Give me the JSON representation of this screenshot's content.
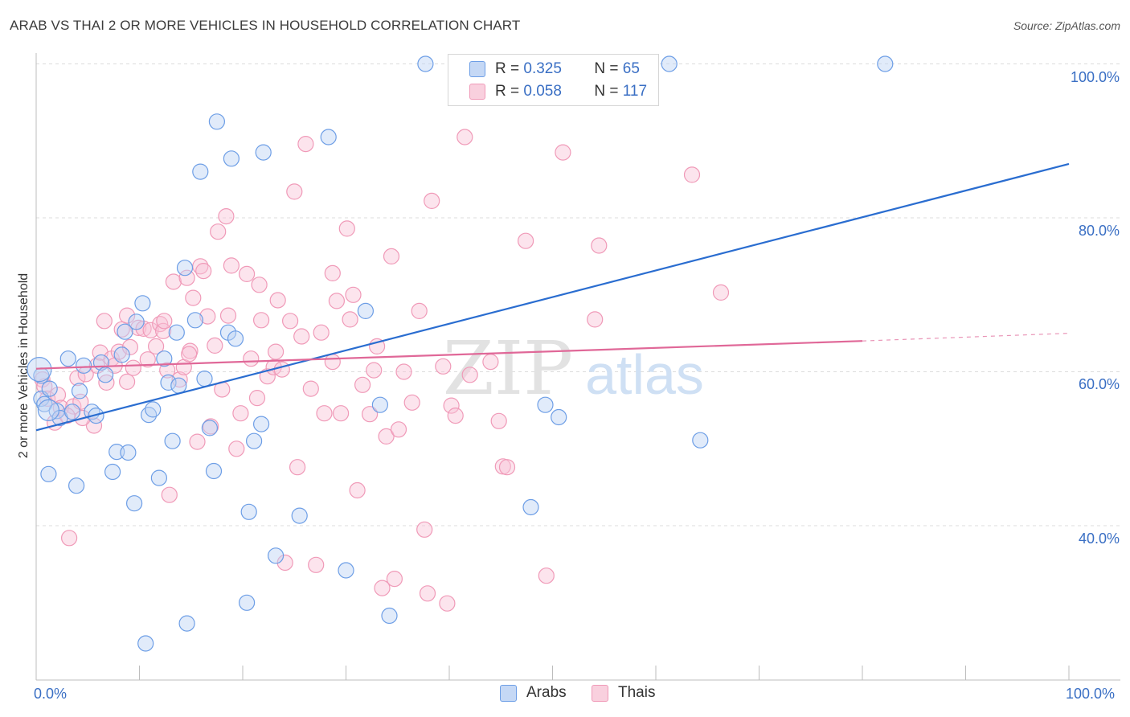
{
  "title": "ARAB VS THAI 2 OR MORE VEHICLES IN HOUSEHOLD CORRELATION CHART",
  "source": "Source: ZipAtlas.com",
  "watermark": {
    "zip": "ZIP",
    "atlas": "atlas"
  },
  "legend_top": {
    "arabs": {
      "r_label": "R = ",
      "r_value": "0.325",
      "n_label": "N = ",
      "n_value": "65"
    },
    "thais": {
      "r_label": "R = ",
      "r_value": "0.058",
      "n_label": "N = ",
      "n_value": "117"
    }
  },
  "legend_bottom": {
    "arabs": "Arabs",
    "thais": "Thais"
  },
  "chart_data": {
    "type": "scatter",
    "title": "ARAB VS THAI 2 OR MORE VEHICLES IN HOUSEHOLD CORRELATION CHART",
    "xlabel": "",
    "ylabel": "2 or more Vehicles in Household",
    "xlim": [
      0,
      100
    ],
    "ylim": [
      20,
      104
    ],
    "x_tick_labels": [
      "0.0%",
      "100.0%"
    ],
    "y_tick_labels": [
      "40.0%",
      "60.0%",
      "80.0%",
      "100.0%"
    ],
    "y_ticks": [
      40,
      60,
      80,
      100
    ],
    "grid": true,
    "legend_position": "top-center",
    "colors": {
      "arabs": "#6d9ee6",
      "thais": "#f09ab8",
      "arabs_line": "#2a6dd0",
      "thais_line": "#e06898"
    },
    "series": [
      {
        "name": "Arabs",
        "trend": {
          "x0": 0,
          "y0": 52.4,
          "x1": 100,
          "y1": 87.0
        },
        "points": [
          [
            0.5,
            59.5
          ],
          [
            0.5,
            56.5
          ],
          [
            0.8,
            55.8
          ],
          [
            1.2,
            46.7
          ],
          [
            1.3,
            57.8
          ],
          [
            2.0,
            54.9
          ],
          [
            2.3,
            54.0
          ],
          [
            3.1,
            61.7
          ],
          [
            3.5,
            54.8
          ],
          [
            3.9,
            45.2
          ],
          [
            4.2,
            57.5
          ],
          [
            4.6,
            60.8
          ],
          [
            5.4,
            54.8
          ],
          [
            5.8,
            54.3
          ],
          [
            6.3,
            61.2
          ],
          [
            6.7,
            59.6
          ],
          [
            7.4,
            47.0
          ],
          [
            7.8,
            49.6
          ],
          [
            8.3,
            62.2
          ],
          [
            8.6,
            65.2
          ],
          [
            8.9,
            49.5
          ],
          [
            9.5,
            42.9
          ],
          [
            9.7,
            66.5
          ],
          [
            10.3,
            68.9
          ],
          [
            10.6,
            24.7
          ],
          [
            10.9,
            54.4
          ],
          [
            11.3,
            55.1
          ],
          [
            11.9,
            46.2
          ],
          [
            12.4,
            61.7
          ],
          [
            12.8,
            58.6
          ],
          [
            13.2,
            51.0
          ],
          [
            13.6,
            65.1
          ],
          [
            13.8,
            58.2
          ],
          [
            14.4,
            73.5
          ],
          [
            14.6,
            27.3
          ],
          [
            15.4,
            66.7
          ],
          [
            15.9,
            86.0
          ],
          [
            16.3,
            59.1
          ],
          [
            16.8,
            52.7
          ],
          [
            17.2,
            47.1
          ],
          [
            17.5,
            92.5
          ],
          [
            18.6,
            65.1
          ],
          [
            18.9,
            87.7
          ],
          [
            19.3,
            64.3
          ],
          [
            20.4,
            30.0
          ],
          [
            20.6,
            41.8
          ],
          [
            21.1,
            51.0
          ],
          [
            21.8,
            53.2
          ],
          [
            22.0,
            88.5
          ],
          [
            23.2,
            36.1
          ],
          [
            25.5,
            41.3
          ],
          [
            28.3,
            90.5
          ],
          [
            30.0,
            34.2
          ],
          [
            31.9,
            67.9
          ],
          [
            33.3,
            55.7
          ],
          [
            34.2,
            28.3
          ],
          [
            37.7,
            100.0
          ],
          [
            47.4,
            100.0
          ],
          [
            49.3,
            55.7
          ],
          [
            50.6,
            54.1
          ],
          [
            47.5,
            100.0
          ],
          [
            47.9,
            42.4
          ],
          [
            61.3,
            100.0
          ],
          [
            64.3,
            51.1
          ],
          [
            82.2,
            100.0
          ]
        ]
      },
      {
        "name": "Thais",
        "trend": {
          "x0": 0,
          "y0": 60.4,
          "x1": 80,
          "y1": 64.0,
          "dashed_to_x": 100,
          "dashed_to_y": 65.0
        },
        "points": [
          [
            0.6,
            59.0
          ],
          [
            0.8,
            58.1
          ],
          [
            1.1,
            56.5
          ],
          [
            1.8,
            53.4
          ],
          [
            2.1,
            57.0
          ],
          [
            2.4,
            55.3
          ],
          [
            3.2,
            38.4
          ],
          [
            3.6,
            55.5
          ],
          [
            4.0,
            59.2
          ],
          [
            4.3,
            56.1
          ],
          [
            4.8,
            59.7
          ],
          [
            5.6,
            53.0
          ],
          [
            5.9,
            60.8
          ],
          [
            6.2,
            62.5
          ],
          [
            6.6,
            66.6
          ],
          [
            6.8,
            58.6
          ],
          [
            7.3,
            61.7
          ],
          [
            7.6,
            60.8
          ],
          [
            8.0,
            62.6
          ],
          [
            8.3,
            65.5
          ],
          [
            8.8,
            67.3
          ],
          [
            9.1,
            63.2
          ],
          [
            9.4,
            60.5
          ],
          [
            9.9,
            65.7
          ],
          [
            10.4,
            65.6
          ],
          [
            10.8,
            61.6
          ],
          [
            11.1,
            65.4
          ],
          [
            11.6,
            63.3
          ],
          [
            12.0,
            66.2
          ],
          [
            12.3,
            65.3
          ],
          [
            12.7,
            60.2
          ],
          [
            12.9,
            44.0
          ],
          [
            13.3,
            71.7
          ],
          [
            13.9,
            59.0
          ],
          [
            14.3,
            60.6
          ],
          [
            14.6,
            72.2
          ],
          [
            14.9,
            62.7
          ],
          [
            15.2,
            69.6
          ],
          [
            15.6,
            50.9
          ],
          [
            15.9,
            73.7
          ],
          [
            16.2,
            73.1
          ],
          [
            16.6,
            67.2
          ],
          [
            16.9,
            52.9
          ],
          [
            17.3,
            63.4
          ],
          [
            17.6,
            78.2
          ],
          [
            18.0,
            57.7
          ],
          [
            18.4,
            80.2
          ],
          [
            18.6,
            67.3
          ],
          [
            18.9,
            73.8
          ],
          [
            19.4,
            50.0
          ],
          [
            19.8,
            54.6
          ],
          [
            20.4,
            72.7
          ],
          [
            20.8,
            61.7
          ],
          [
            21.4,
            56.6
          ],
          [
            21.6,
            71.3
          ],
          [
            21.8,
            66.7
          ],
          [
            22.4,
            59.4
          ],
          [
            23.0,
            60.6
          ],
          [
            23.4,
            69.3
          ],
          [
            23.8,
            60.3
          ],
          [
            24.1,
            35.2
          ],
          [
            24.6,
            66.6
          ],
          [
            25.0,
            83.4
          ],
          [
            25.3,
            47.6
          ],
          [
            25.7,
            64.6
          ],
          [
            26.1,
            89.6
          ],
          [
            26.6,
            57.8
          ],
          [
            27.1,
            34.9
          ],
          [
            27.6,
            65.1
          ],
          [
            27.9,
            54.6
          ],
          [
            28.7,
            72.8
          ],
          [
            29.1,
            69.2
          ],
          [
            29.5,
            54.6
          ],
          [
            30.1,
            78.6
          ],
          [
            30.4,
            66.8
          ],
          [
            30.7,
            70.0
          ],
          [
            31.1,
            44.6
          ],
          [
            31.6,
            58.3
          ],
          [
            32.3,
            54.5
          ],
          [
            32.7,
            60.2
          ],
          [
            33.0,
            63.3
          ],
          [
            33.5,
            31.9
          ],
          [
            33.9,
            51.6
          ],
          [
            34.4,
            75.0
          ],
          [
            34.7,
            33.1
          ],
          [
            35.1,
            52.5
          ],
          [
            35.6,
            60.0
          ],
          [
            36.4,
            56.0
          ],
          [
            37.1,
            67.9
          ],
          [
            37.6,
            39.5
          ],
          [
            37.9,
            31.2
          ],
          [
            38.3,
            82.2
          ],
          [
            39.4,
            60.7
          ],
          [
            39.8,
            29.9
          ],
          [
            40.2,
            55.6
          ],
          [
            40.6,
            54.3
          ],
          [
            41.5,
            90.5
          ],
          [
            42.0,
            59.6
          ],
          [
            44.0,
            61.3
          ],
          [
            44.8,
            53.6
          ],
          [
            45.2,
            47.7
          ],
          [
            45.6,
            47.6
          ],
          [
            47.4,
            77.0
          ],
          [
            49.4,
            33.5
          ],
          [
            51.0,
            88.5
          ],
          [
            54.1,
            66.8
          ],
          [
            54.5,
            76.4
          ],
          [
            63.5,
            85.6
          ],
          [
            66.3,
            70.3
          ],
          [
            12.4,
            66.6
          ],
          [
            14.8,
            62.3
          ],
          [
            8.8,
            58.7
          ],
          [
            4.5,
            54.0
          ],
          [
            3.0,
            54.3
          ],
          [
            23.2,
            62.6
          ],
          [
            28.7,
            61.3
          ]
        ]
      }
    ]
  }
}
